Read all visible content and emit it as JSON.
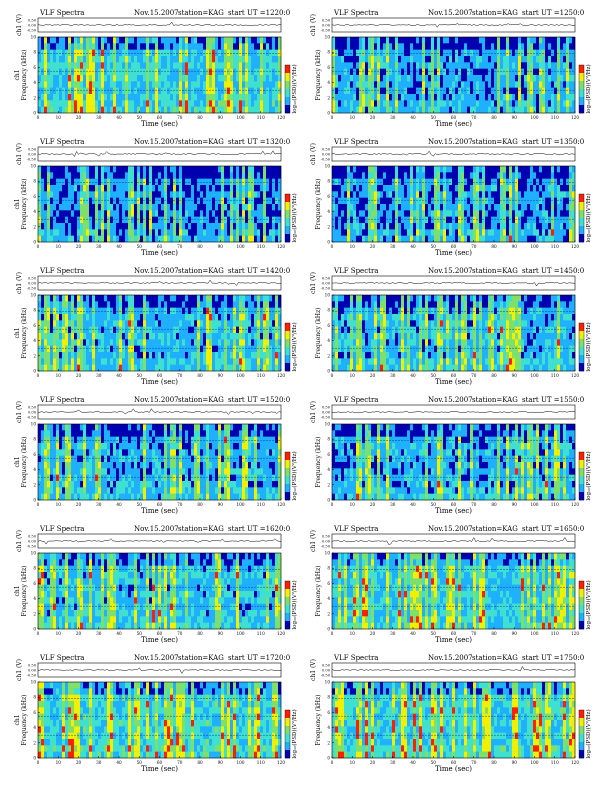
{
  "header_label": "VLF Spectra",
  "date": "Nov.15.2007",
  "station": "station=KAG",
  "start_prefix": "start  UT  =",
  "signal_label": "ch1 (V)",
  "signal_ticks": [
    "0.50",
    "0.00",
    "-0.50"
  ],
  "freq_label_ch": "ch1",
  "freq_label": "Frequency  (kHz)",
  "freq_ticks": [
    "0",
    "2",
    "4",
    "6",
    "8",
    "10"
  ],
  "time_label": "Time  (sec)",
  "time_ticks": [
    "0",
    "10",
    "20",
    "30",
    "40",
    "50",
    "60",
    "70",
    "80",
    "90",
    "100",
    "110",
    "120"
  ],
  "colorbar_label": "log₁₀(PSD)(V²/Hz)",
  "colors": {
    "low": "#0000b0",
    "mid": "#1fb0ff",
    "cyan": "#40e0d0",
    "green": "#7ee06b",
    "yellow": "#f0f000",
    "red": "#ff2000"
  },
  "chart_data": [
    {
      "type": "heatmap",
      "start_ut": "1220:0",
      "intensity": 0.7,
      "xlim": [
        0,
        120
      ],
      "ylim": [
        0,
        10
      ]
    },
    {
      "type": "heatmap",
      "start_ut": "1250:0",
      "intensity": 0.4,
      "xlim": [
        0,
        120
      ],
      "ylim": [
        0,
        10
      ]
    },
    {
      "type": "heatmap",
      "start_ut": "1320:0",
      "intensity": 0.3,
      "xlim": [
        0,
        120
      ],
      "ylim": [
        0,
        10
      ]
    },
    {
      "type": "heatmap",
      "start_ut": "1350:0",
      "intensity": 0.35,
      "xlim": [
        0,
        120
      ],
      "ylim": [
        0,
        10
      ]
    },
    {
      "type": "heatmap",
      "start_ut": "1420:0",
      "intensity": 0.5,
      "xlim": [
        0,
        120
      ],
      "ylim": [
        0,
        10
      ]
    },
    {
      "type": "heatmap",
      "start_ut": "1450:0",
      "intensity": 0.5,
      "xlim": [
        0,
        120
      ],
      "ylim": [
        0,
        10
      ]
    },
    {
      "type": "heatmap",
      "start_ut": "1520:0",
      "intensity": 0.45,
      "xlim": [
        0,
        120
      ],
      "ylim": [
        0,
        10
      ]
    },
    {
      "type": "heatmap",
      "start_ut": "1550:0",
      "intensity": 0.45,
      "xlim": [
        0,
        120
      ],
      "ylim": [
        0,
        10
      ]
    },
    {
      "type": "heatmap",
      "start_ut": "1620:0",
      "intensity": 0.55,
      "xlim": [
        0,
        120
      ],
      "ylim": [
        0,
        10
      ]
    },
    {
      "type": "heatmap",
      "start_ut": "1650:0",
      "intensity": 0.65,
      "xlim": [
        0,
        120
      ],
      "ylim": [
        0,
        10
      ]
    },
    {
      "type": "heatmap",
      "start_ut": "1720:0",
      "intensity": 0.75,
      "xlim": [
        0,
        120
      ],
      "ylim": [
        0,
        10
      ]
    },
    {
      "type": "heatmap",
      "start_ut": "1750:0",
      "intensity": 0.75,
      "xlim": [
        0,
        120
      ],
      "ylim": [
        0,
        10
      ]
    }
  ]
}
